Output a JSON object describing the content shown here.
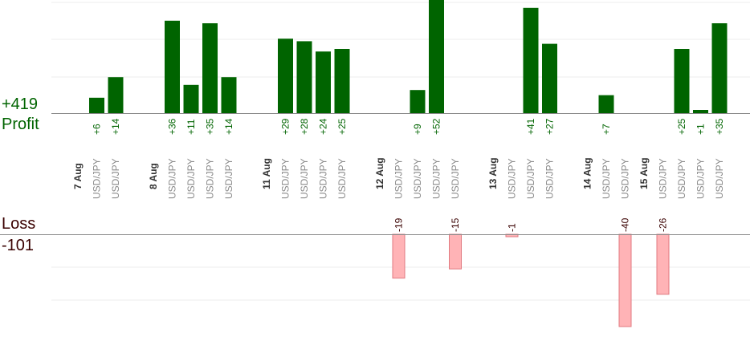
{
  "summary": {
    "total_profit": "+419",
    "profit_label": "Profit",
    "loss_label": "Loss",
    "total_loss": "-101"
  },
  "colors": {
    "profit_bar": "#006400",
    "profit_text": "#006400",
    "loss_bar": "#ffb3b6",
    "loss_bar_border": "#e07a80",
    "loss_text": "#3a0000",
    "date_text": "#333333",
    "pair_text": "#8a8a8a",
    "grid": "#ececec",
    "axis": "#888888"
  },
  "chart_data": {
    "type": "bar",
    "columns": [
      {
        "date": "7 Aug"
      },
      {
        "pair": "USD/JPY",
        "profit": 6,
        "profit_label": "+6"
      },
      {
        "pair": "USD/JPY",
        "profit": 14,
        "profit_label": "+14"
      },
      {
        "gap": true
      },
      {
        "date": "8 Aug"
      },
      {
        "pair": "USD/JPY",
        "profit": 36,
        "profit_label": "+36"
      },
      {
        "pair": "USD/JPY",
        "profit": 11,
        "profit_label": "+11"
      },
      {
        "pair": "USD/JPY",
        "profit": 35,
        "profit_label": "+35"
      },
      {
        "pair": "USD/JPY",
        "profit": 14,
        "profit_label": "+14"
      },
      {
        "gap": true
      },
      {
        "date": "11 Aug"
      },
      {
        "pair": "USD/JPY",
        "profit": 29,
        "profit_label": "+29"
      },
      {
        "pair": "USD/JPY",
        "profit": 28,
        "profit_label": "+28"
      },
      {
        "pair": "USD/JPY",
        "profit": 24,
        "profit_label": "+24"
      },
      {
        "pair": "USD/JPY",
        "profit": 25,
        "profit_label": "+25"
      },
      {
        "gap": true
      },
      {
        "date": "12 Aug"
      },
      {
        "pair": "USD/JPY",
        "loss": -19,
        "loss_label": "-19"
      },
      {
        "pair": "USD/JPY",
        "profit": 9,
        "profit_label": "+9"
      },
      {
        "pair": "USD/JPY",
        "profit": 52,
        "profit_label": "+52"
      },
      {
        "pair": "USD/JPY",
        "loss": -15,
        "loss_label": "-15"
      },
      {
        "gap": true
      },
      {
        "date": "13 Aug"
      },
      {
        "pair": "USD/JPY",
        "loss": -1,
        "loss_label": "-1"
      },
      {
        "pair": "USD/JPY",
        "profit": 41,
        "profit_label": "+41"
      },
      {
        "pair": "USD/JPY",
        "profit": 27,
        "profit_label": "+27"
      },
      {
        "gap": true
      },
      {
        "date": "14 Aug"
      },
      {
        "pair": "USD/JPY",
        "profit": 7,
        "profit_label": "+7"
      },
      {
        "pair": "USD/JPY",
        "loss": -40,
        "loss_label": "-40"
      },
      {
        "date": "15 Aug"
      },
      {
        "pair": "USD/JPY",
        "loss": -26,
        "loss_label": "-26"
      },
      {
        "pair": "USD/JPY",
        "profit": 25,
        "profit_label": "+25"
      },
      {
        "pair": "USD/JPY",
        "profit": 1,
        "profit_label": "+1"
      },
      {
        "pair": "USD/JPY",
        "profit": 35,
        "profit_label": "+35"
      }
    ],
    "profit_axis_max": 30,
    "loss_axis_max": 40,
    "grid": true
  }
}
